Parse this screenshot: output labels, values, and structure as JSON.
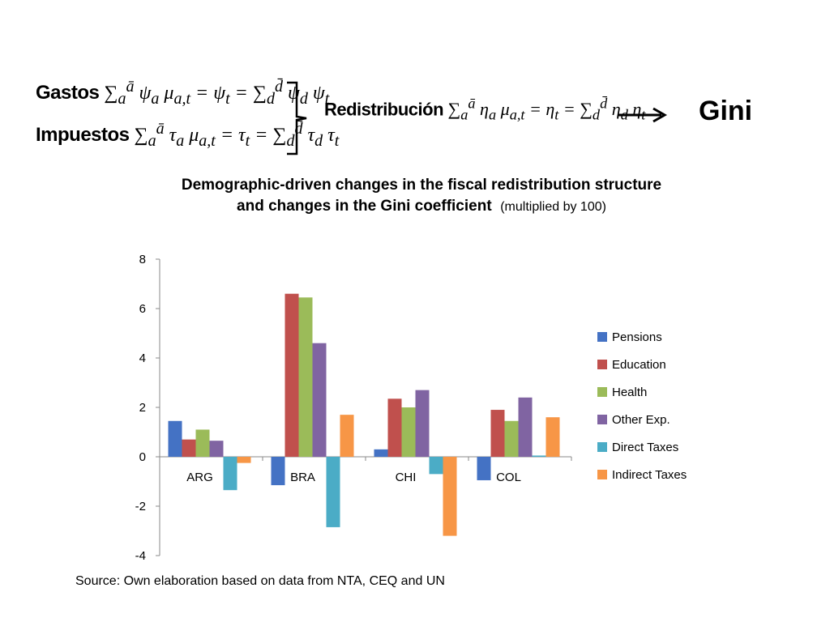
{
  "header": {
    "gastos_label": "Gastos",
    "gastos_formula": "∑ ψ μ = ψ = ∑ ψ ψ",
    "impuestos_label": "Impuestos",
    "impuestos_formula": "∑ τ μ = τ = ∑ τ τ",
    "redistribucion_label": "Redistribución",
    "redistribucion_formula": "∑ η μ = η = ∑ η η",
    "result_label": "Gini"
  },
  "chart_data": {
    "type": "bar",
    "title_line1": "Demographic-driven changes in the fiscal redistribution structure",
    "title_line2": "and changes in the Gini coefficient",
    "title_note": "(multiplied by 100)",
    "categories": [
      "ARG",
      "BRA",
      "CHI",
      "COL"
    ],
    "series": [
      {
        "name": "Pensions",
        "color": "#4472C4",
        "values": [
          1.45,
          -1.15,
          0.3,
          -0.95
        ]
      },
      {
        "name": "Education",
        "color": "#C0504D",
        "values": [
          0.7,
          6.6,
          2.35,
          1.9
        ]
      },
      {
        "name": "Health",
        "color": "#9BBB59",
        "values": [
          1.1,
          6.45,
          2.0,
          1.45
        ]
      },
      {
        "name": "Other Exp.",
        "color": "#8064A2",
        "values": [
          0.65,
          4.6,
          2.7,
          2.4
        ]
      },
      {
        "name": "Direct Taxes",
        "color": "#4BACC6",
        "values": [
          -1.35,
          -2.85,
          -0.7,
          0.05
        ]
      },
      {
        "name": "Indirect Taxes",
        "color": "#F79646",
        "values": [
          -0.25,
          1.7,
          -3.2,
          1.6
        ]
      }
    ],
    "ylim": [
      -4,
      8
    ],
    "yticks": [
      -4,
      -2,
      0,
      2,
      4,
      6,
      8
    ],
    "grid": false,
    "legend_position": "right"
  },
  "footer": {
    "source": "Source: Own elaboration based on data from NTA, CEQ and UN"
  }
}
